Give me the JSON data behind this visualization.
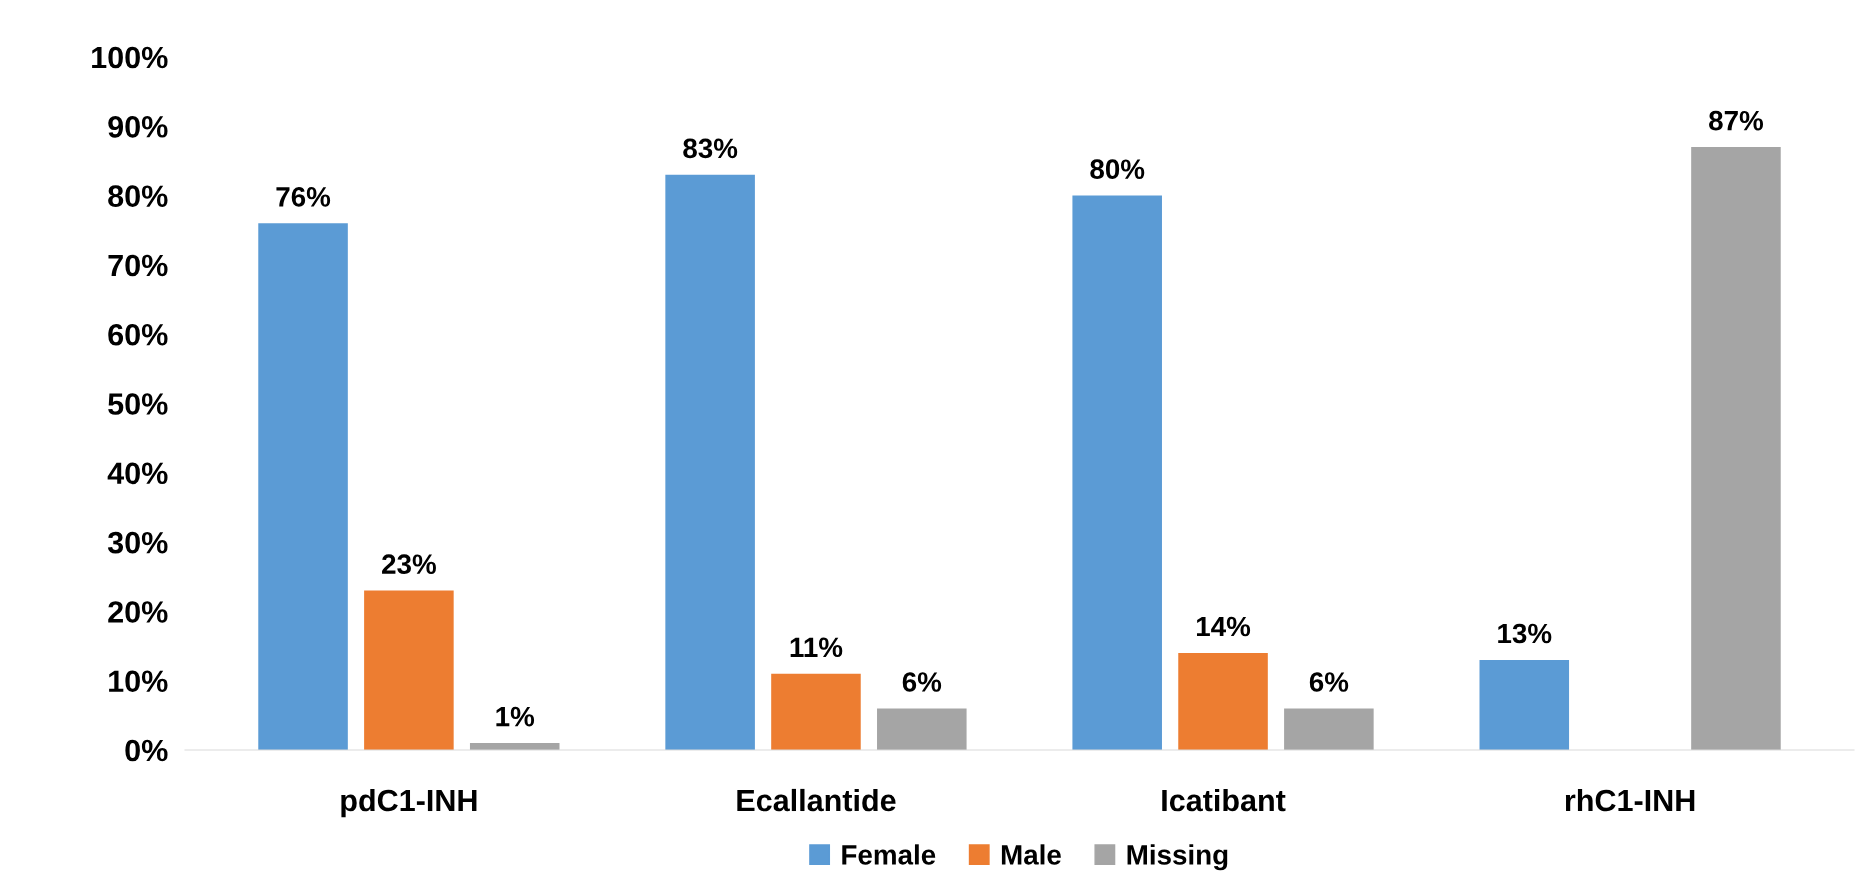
{
  "chart_data": {
    "type": "bar",
    "categories": [
      "pdC1-INH",
      "Ecallantide",
      "Icatibant",
      "rhC1-INH"
    ],
    "series": [
      {
        "name": "Female",
        "color": "#5b9bd5",
        "values": [
          76,
          83,
          80,
          13
        ],
        "value_labels": [
          "76%",
          "83%",
          "80%",
          "13%"
        ]
      },
      {
        "name": "Male",
        "color": "#ed7d31",
        "values": [
          23,
          11,
          14,
          0
        ],
        "value_labels": [
          "23%",
          "11%",
          "14%",
          null
        ]
      },
      {
        "name": "Missing",
        "color": "#a5a5a5",
        "values": [
          1,
          6,
          6,
          87
        ],
        "value_labels": [
          "1%",
          "6%",
          "6%",
          "87%"
        ]
      }
    ],
    "ylim": [
      0,
      100
    ],
    "yticks": [
      {
        "value": 0,
        "label": "0%"
      },
      {
        "value": 10,
        "label": "10%"
      },
      {
        "value": 20,
        "label": "20%"
      },
      {
        "value": 30,
        "label": "30%"
      },
      {
        "value": 40,
        "label": "40%"
      },
      {
        "value": 50,
        "label": "50%"
      },
      {
        "value": 60,
        "label": "60%"
      },
      {
        "value": 70,
        "label": "70%"
      },
      {
        "value": 80,
        "label": "80%"
      },
      {
        "value": 90,
        "label": "90%"
      },
      {
        "value": 100,
        "label": "100%"
      }
    ],
    "grid": false,
    "legend": "bottom"
  }
}
